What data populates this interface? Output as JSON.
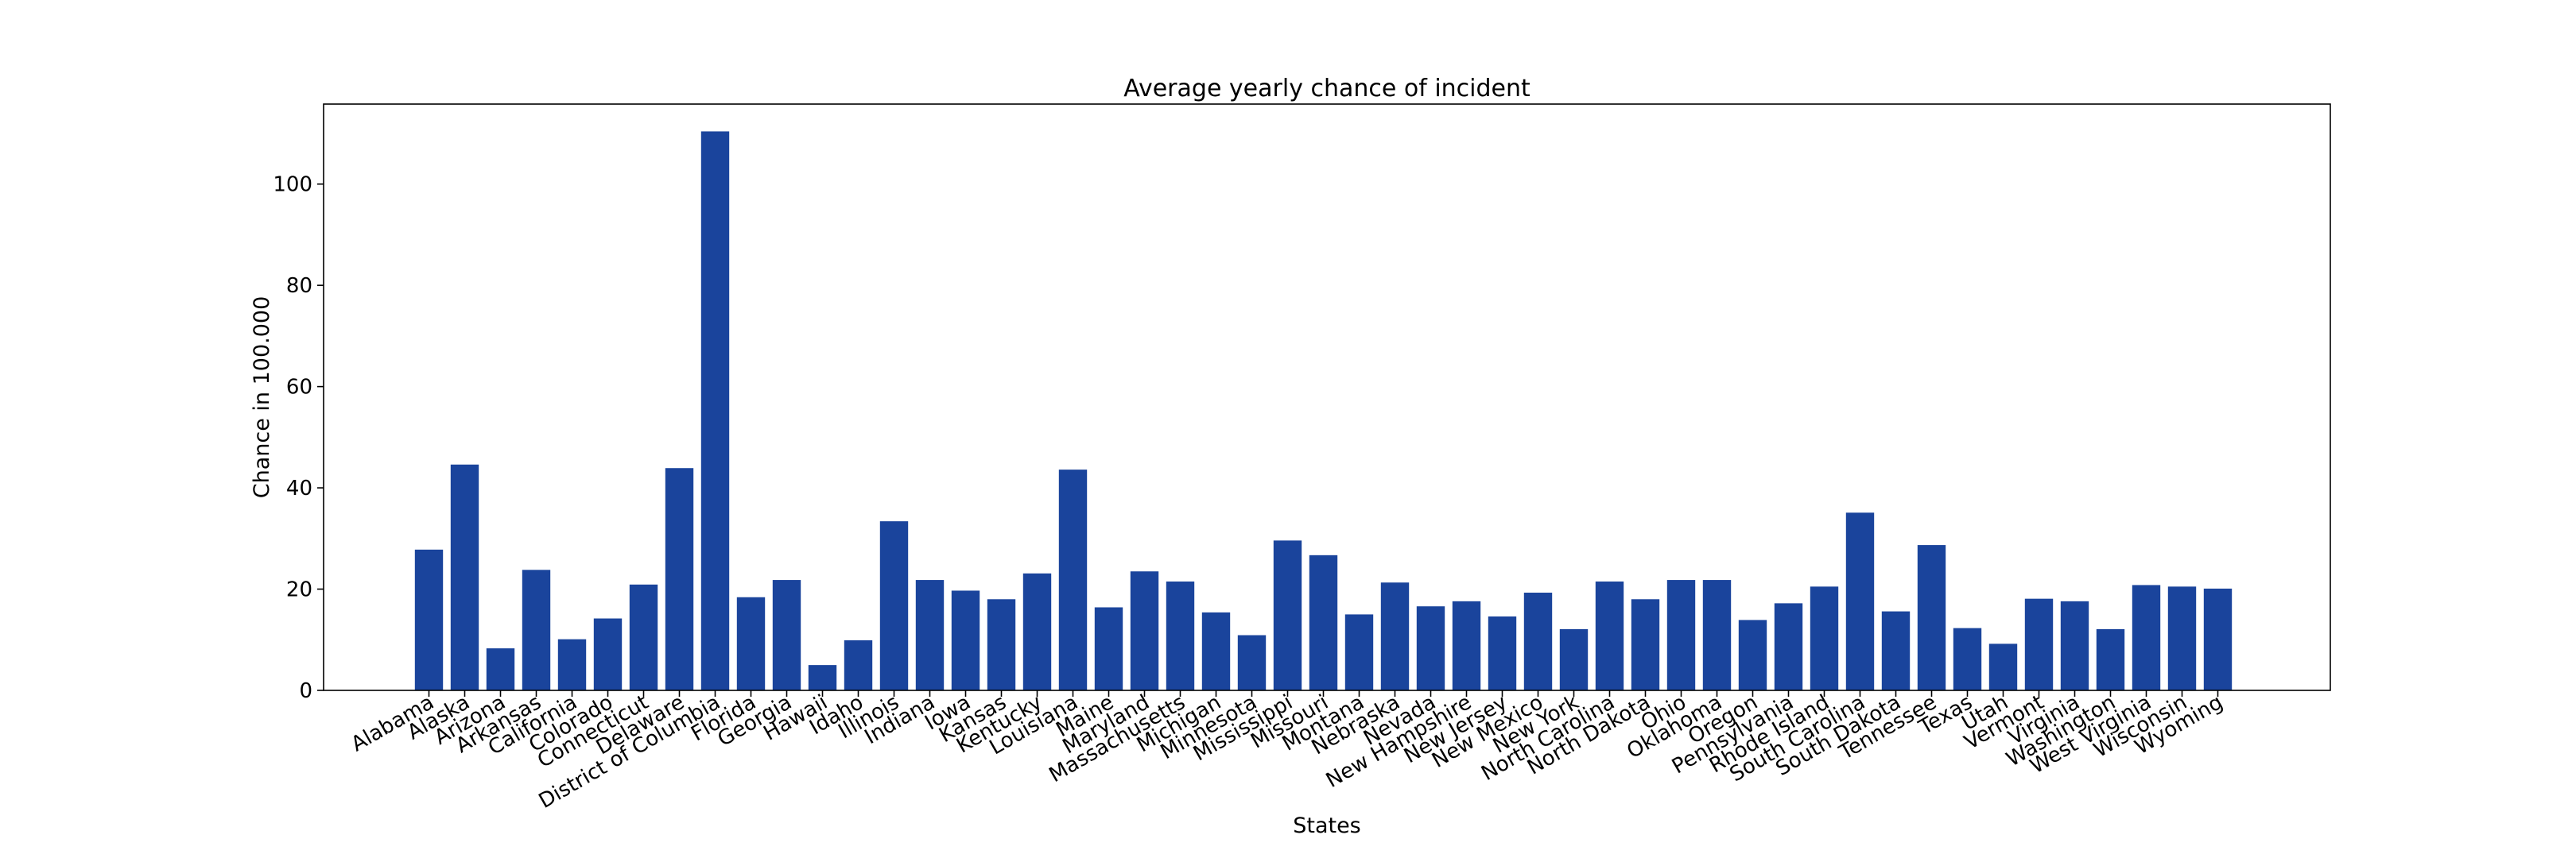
{
  "chart_data": {
    "type": "bar",
    "title": "Average yearly chance of incident",
    "xlabel": "States",
    "ylabel": "Chance in 100.000",
    "ylim": [
      0,
      115.8
    ],
    "yticks": [
      0,
      20,
      40,
      60,
      80,
      100
    ],
    "grid": false,
    "bar_color": "#1a449c",
    "categories": [
      "Alabama",
      "Alaska",
      "Arizona",
      "Arkansas",
      "California",
      "Colorado",
      "Connecticut",
      "Delaware",
      "District of Columbia",
      "Florida",
      "Georgia",
      "Hawaii",
      "Idaho",
      "Illinois",
      "Indiana",
      "Iowa",
      "Kansas",
      "Kentucky",
      "Louisiana",
      "Maine",
      "Maryland",
      "Massachusetts",
      "Michigan",
      "Minnesota",
      "Mississippi",
      "Missouri",
      "Montana",
      "Nebraska",
      "Nevada",
      "New Hampshire",
      "New Jersey",
      "New Mexico",
      "New York",
      "North Carolina",
      "North Dakota",
      "Ohio",
      "Oklahoma",
      "Oregon",
      "Pennsylvania",
      "Rhode Island",
      "South Carolina",
      "South Dakota",
      "Tennessee",
      "Texas",
      "Utah",
      "Vermont",
      "Virginia",
      "Washington",
      "West Virginia",
      "Wisconsin",
      "Wyoming"
    ],
    "values": [
      27.8,
      44.6,
      8.3,
      23.8,
      10.1,
      14.2,
      20.9,
      43.9,
      110.4,
      18.4,
      21.8,
      5.0,
      9.9,
      33.4,
      21.8,
      19.7,
      18.0,
      23.1,
      43.6,
      16.4,
      23.5,
      21.5,
      15.4,
      10.9,
      29.6,
      26.7,
      15.0,
      21.3,
      16.6,
      17.6,
      14.6,
      19.3,
      12.1,
      21.5,
      18.0,
      21.8,
      21.8,
      13.9,
      17.2,
      20.5,
      35.1,
      15.6,
      28.7,
      12.3,
      9.2,
      18.1,
      17.6,
      12.1,
      20.8,
      20.5,
      20.1
    ]
  }
}
